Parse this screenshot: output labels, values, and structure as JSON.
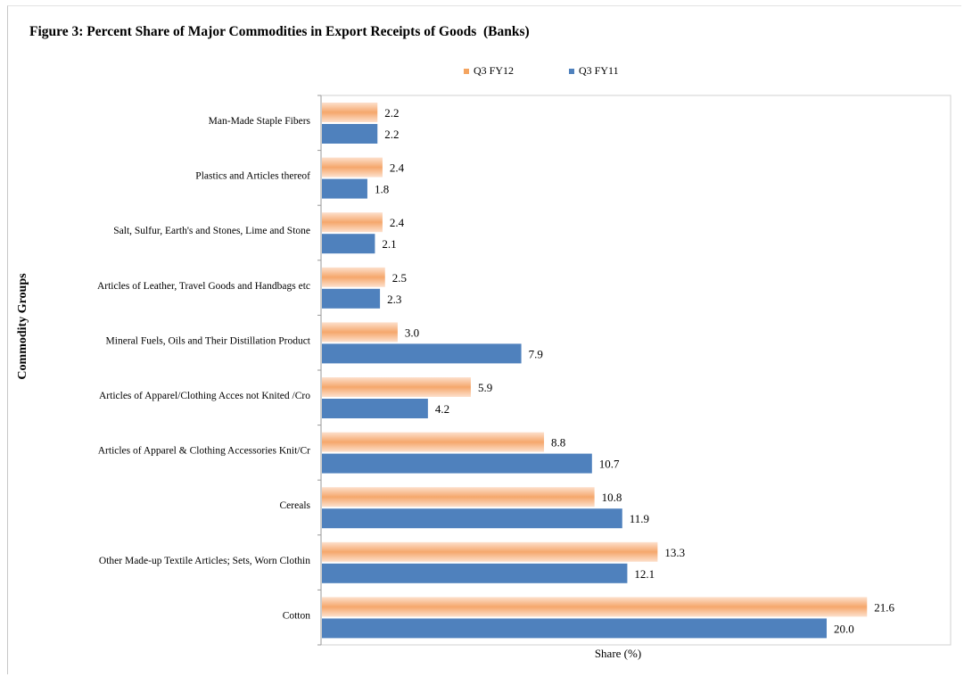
{
  "chart_data": {
    "type": "bar",
    "orientation": "horizontal",
    "title": "Figure 3: Percent Share of Major Commodities in Export Receipts of Goods  (Banks)",
    "xlabel": "Share (%)",
    "ylabel": "Commodity Groups",
    "xlim": [
      0,
      25
    ],
    "legend_position": "top",
    "categories": [
      "Man-Made Staple Fibers",
      "Plastics and Articles thereof",
      "Salt, Sulfur, Earth's and Stones, Lime and Stone",
      "Articles of Leather, Travel Goods and Handbags etc",
      "Mineral Fuels, Oils and Their Distillation Product",
      "Articles of Apparel/Clothing Acces not Knited /Cro",
      "Articles of Apparel & Clothing Accessories Knit/Cr",
      "Cereals",
      "Other Made-up Textile Articles; Sets, Worn Clothin",
      "Cotton"
    ],
    "series": [
      {
        "name": "Q3 FY12",
        "color": "#f4a460",
        "values": [
          2.2,
          2.4,
          2.4,
          2.5,
          3.0,
          5.9,
          8.8,
          10.8,
          13.3,
          21.6
        ],
        "labels": [
          "2.2",
          "2.4",
          "2.4",
          "2.5",
          "3.0",
          "5.9",
          "8.8",
          "10.8",
          "13.3",
          "21.6"
        ]
      },
      {
        "name": "Q3 FY11",
        "color": "#4f81bd",
        "values": [
          2.2,
          1.8,
          2.1,
          2.3,
          7.9,
          4.2,
          10.7,
          11.9,
          12.1,
          20.0
        ],
        "labels": [
          "2.2",
          "1.8",
          "2.1",
          "2.3",
          "7.9",
          "4.2",
          "10.7",
          "11.9",
          "12.1",
          "20.0"
        ]
      }
    ]
  }
}
